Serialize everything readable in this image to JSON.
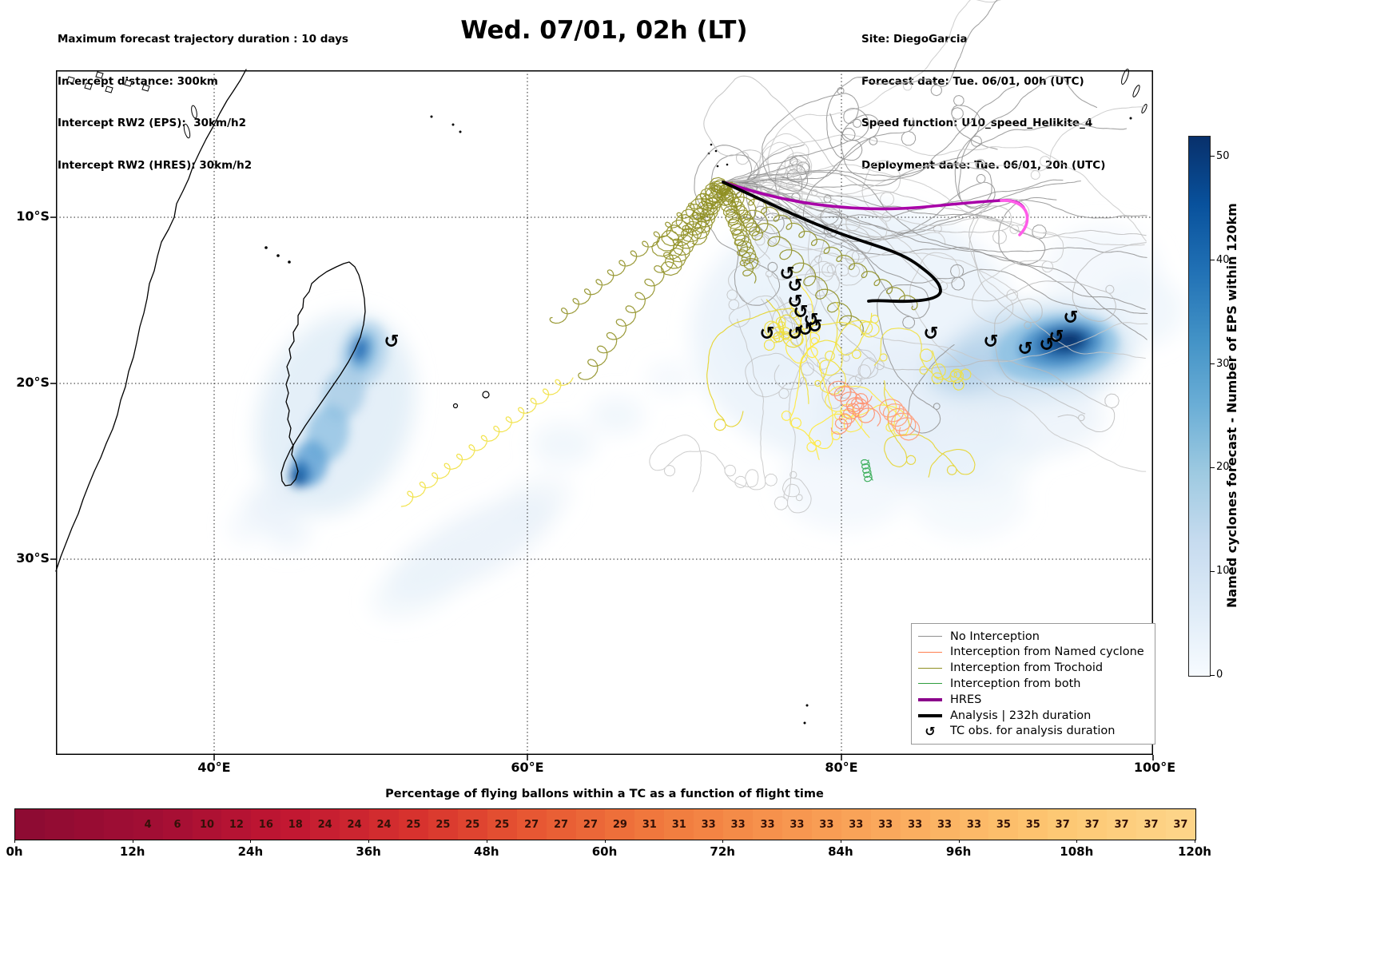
{
  "header": {
    "left_lines": [
      "Maximum forecast trajectory duration : 10 days",
      "Intercept distance: 300km",
      "Intercept RW2 (EPS):  30km/h2",
      "Intercept RW2 (HRES): 30km/h2"
    ],
    "title": "Wed. 07/01, 02h (LT)",
    "right_lines": [
      "Site: DiegoGarcia",
      "Forecast date: Tue. 06/01, 00h (UTC)",
      "Speed function: U10_speed_Helikite_4",
      "Deployment date: Tue. 06/01, 20h (UTC)"
    ]
  },
  "map": {
    "x_tick_labels": [
      "40°E",
      "60°E",
      "80°E",
      "100°E"
    ],
    "y_tick_labels": [
      "10°S",
      "20°S",
      "30°S"
    ],
    "tc_symbol": "↺"
  },
  "legend": {
    "items": [
      {
        "label": "No Interception",
        "color": "#8f8f8f",
        "style": "thin"
      },
      {
        "label": "Interception from Named cyclone",
        "color": "#ff7f50",
        "style": "thin"
      },
      {
        "label": "Interception from Trochoid",
        "color": "#8f8f22",
        "style": "thin"
      },
      {
        "label": "Interception from both",
        "color": "#2e9e3e",
        "style": "thin"
      },
      {
        "label": "HRES",
        "color": "#8b008b",
        "style": "thick"
      },
      {
        "label": "Analysis | 232h duration",
        "color": "#000000",
        "style": "thick"
      },
      {
        "label": "TC obs. for analysis duration",
        "symbol": "↺",
        "style": "symbol"
      }
    ]
  },
  "colorbar_right": {
    "label": "Named cyclones forecast - Number of EPS within 120km",
    "ticks": [
      "0",
      "10",
      "20",
      "30",
      "40",
      "50"
    ],
    "vmax": 52,
    "gradient": [
      "#f7fbff",
      "#deebf7",
      "#c6dbef",
      "#9ecae1",
      "#6baed6",
      "#4292c6",
      "#2171b5",
      "#08519c",
      "#08306b"
    ]
  },
  "bottom_bar": {
    "title": "Percentage of flying ballons within a TC as a function of flight time",
    "cell_values": [
      "",
      "",
      "",
      "",
      "4",
      "6",
      "10",
      "12",
      "16",
      "18",
      "24",
      "24",
      "24",
      "25",
      "25",
      "25",
      "25",
      "27",
      "27",
      "27",
      "29",
      "31",
      "31",
      "33",
      "33",
      "33",
      "33",
      "33",
      "33",
      "33",
      "33",
      "33",
      "33",
      "35",
      "35",
      "37",
      "37",
      "37",
      "37",
      "37"
    ],
    "gradient": [
      "#8e0b33",
      "#a30e34",
      "#c01632",
      "#d7322e",
      "#e85a33",
      "#f17c3f",
      "#f79750",
      "#fbb061",
      "#fdc772",
      "#fdd488"
    ],
    "tick_labels": [
      "0h",
      "12h",
      "24h",
      "36h",
      "48h",
      "60h",
      "72h",
      "84h",
      "96h",
      "108h",
      "120h"
    ]
  },
  "chart_data": {
    "type": "heatmap",
    "title": "Wed. 07/01, 02h (LT)",
    "map_panel": {
      "x_axis": {
        "ticks": [
          "40°E",
          "60°E",
          "80°E",
          "100°E"
        ],
        "range_deg_east": [
          30,
          100
        ]
      },
      "y_axis": {
        "ticks": [
          "10°S",
          "20°S",
          "30°S"
        ],
        "range_deg_south": [
          1,
          42
        ]
      },
      "grid": "dotted",
      "colorbar": {
        "label": "Named cyclones forecast - Number of EPS within 120km",
        "ticks": [
          0,
          10,
          20,
          30,
          40,
          50
        ],
        "range": [
          0,
          52
        ]
      },
      "legend_series": [
        "No Interception",
        "Interception from Named cyclone",
        "Interception from Trochoid",
        "Interception from both",
        "HRES",
        "Analysis | 232h duration",
        "TC obs. for analysis duration"
      ],
      "deployment_site": "DiegoGarcia"
    },
    "balloon_percentage_strip": {
      "title": "Percentage of flying ballons within a TC as a function of flight time",
      "hours_per_cell": 3,
      "x_range_hours": [
        0,
        120
      ],
      "x_ticks_hours": [
        0,
        12,
        24,
        36,
        48,
        60,
        72,
        84,
        96,
        108,
        120
      ],
      "values": [
        null,
        null,
        null,
        null,
        4,
        6,
        10,
        12,
        16,
        18,
        24,
        24,
        24,
        25,
        25,
        25,
        25,
        27,
        27,
        27,
        29,
        31,
        31,
        33,
        33,
        33,
        33,
        33,
        33,
        33,
        33,
        33,
        33,
        35,
        35,
        37,
        37,
        37,
        37,
        37
      ]
    }
  }
}
